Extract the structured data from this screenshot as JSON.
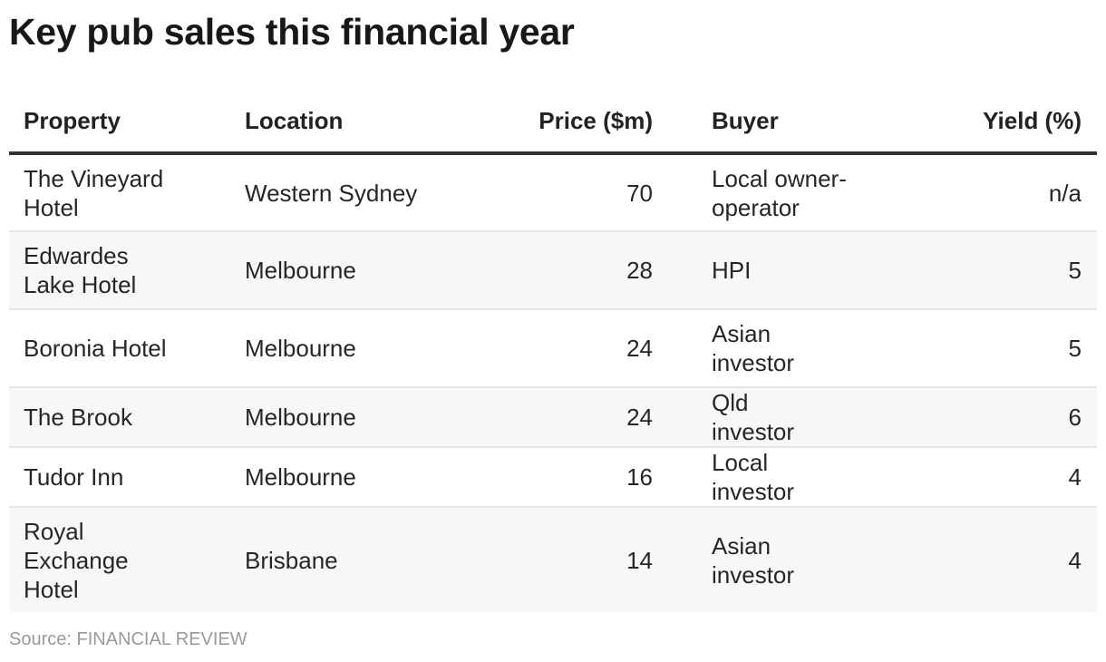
{
  "title": "Key pub sales this financial year",
  "source": "Source: FINANCIAL REVIEW",
  "chart_data": {
    "type": "table",
    "title": "Key pub sales this financial year",
    "columns": [
      "Property",
      "Location",
      "Price ($m)",
      "Buyer",
      "Yield (%)"
    ],
    "rows": [
      {
        "property": "The Vineyard Hotel",
        "location": "Western Sydney",
        "price": "70",
        "buyer": "Local owner-operator",
        "yield": "n/a"
      },
      {
        "property": "Edwardes Lake Hotel",
        "location": "Melbourne",
        "price": "28",
        "buyer": "HPI",
        "yield": "5"
      },
      {
        "property": "Boronia Hotel",
        "location": "Melbourne",
        "price": "24",
        "buyer": "Asian investor",
        "yield": "5"
      },
      {
        "property": "The Brook",
        "location": "Melbourne",
        "price": "24",
        "buyer": "Qld investor",
        "yield": "6"
      },
      {
        "property": "Tudor Inn",
        "location": "Melbourne",
        "price": "16",
        "buyer": "Local investor",
        "yield": "4"
      },
      {
        "property": "Royal Exchange Hotel",
        "location": "Brisbane",
        "price": "14",
        "buyer": "Asian investor",
        "yield": "4"
      }
    ],
    "source": "Source: FINANCIAL REVIEW"
  }
}
